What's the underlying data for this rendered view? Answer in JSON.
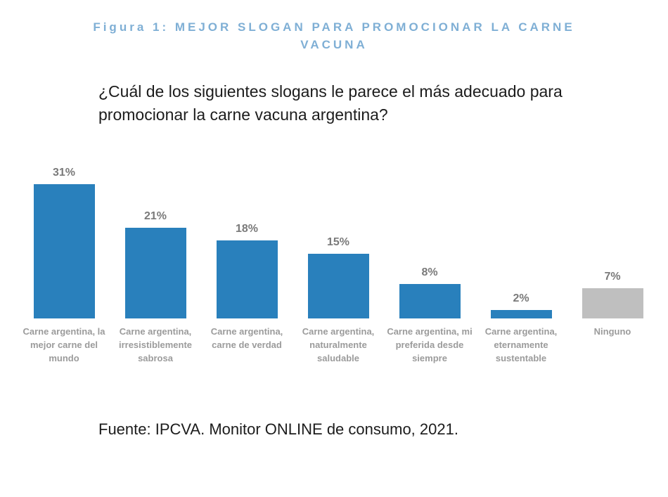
{
  "figure": {
    "title": "Figura 1: MEJOR SLOGAN PARA PROMOCIONAR LA CARNE VACUNA"
  },
  "question": "¿Cuál de los siguientes slogans le parece el más adecuado para promocionar la carne vacuna argentina?",
  "source": "Fuente: IPCVA. Monitor ONLINE de consumo, 2021.",
  "colors": {
    "title_blue": "#7FAFD5",
    "bar_blue": "#2980BC",
    "bar_gray": "#BFBFBF",
    "value_label_gray": "#7A7A7A",
    "category_label_gray": "#9B9B9B",
    "text_dark": "#1C1C1C"
  },
  "chart_data": {
    "type": "bar",
    "title": "Figura 1: MEJOR SLOGAN PARA PROMOCIONAR LA CARNE VACUNA",
    "categories": [
      "Carne argentina, la mejor carne del mundo",
      "Carne argentina, irresistiblemente sabrosa",
      "Carne argentina, carne de verdad",
      "Carne argentina, naturalmente saludable",
      "Carne argentina, mi preferida desde siempre",
      "Carne argentina, eternamente sustentable",
      "Ninguno"
    ],
    "values": [
      31,
      21,
      18,
      15,
      8,
      2,
      7
    ],
    "value_labels": [
      "31%",
      "21%",
      "18%",
      "15%",
      "8%",
      "2%",
      "7%"
    ],
    "bar_colors": [
      "#2980BC",
      "#2980BC",
      "#2980BC",
      "#2980BC",
      "#2980BC",
      "#2980BC",
      "#BFBFBF"
    ],
    "xlabel": "",
    "ylabel": "",
    "ylim": [
      0,
      35
    ],
    "grid": false,
    "legend": false,
    "value_labels_position": "above-bars"
  }
}
